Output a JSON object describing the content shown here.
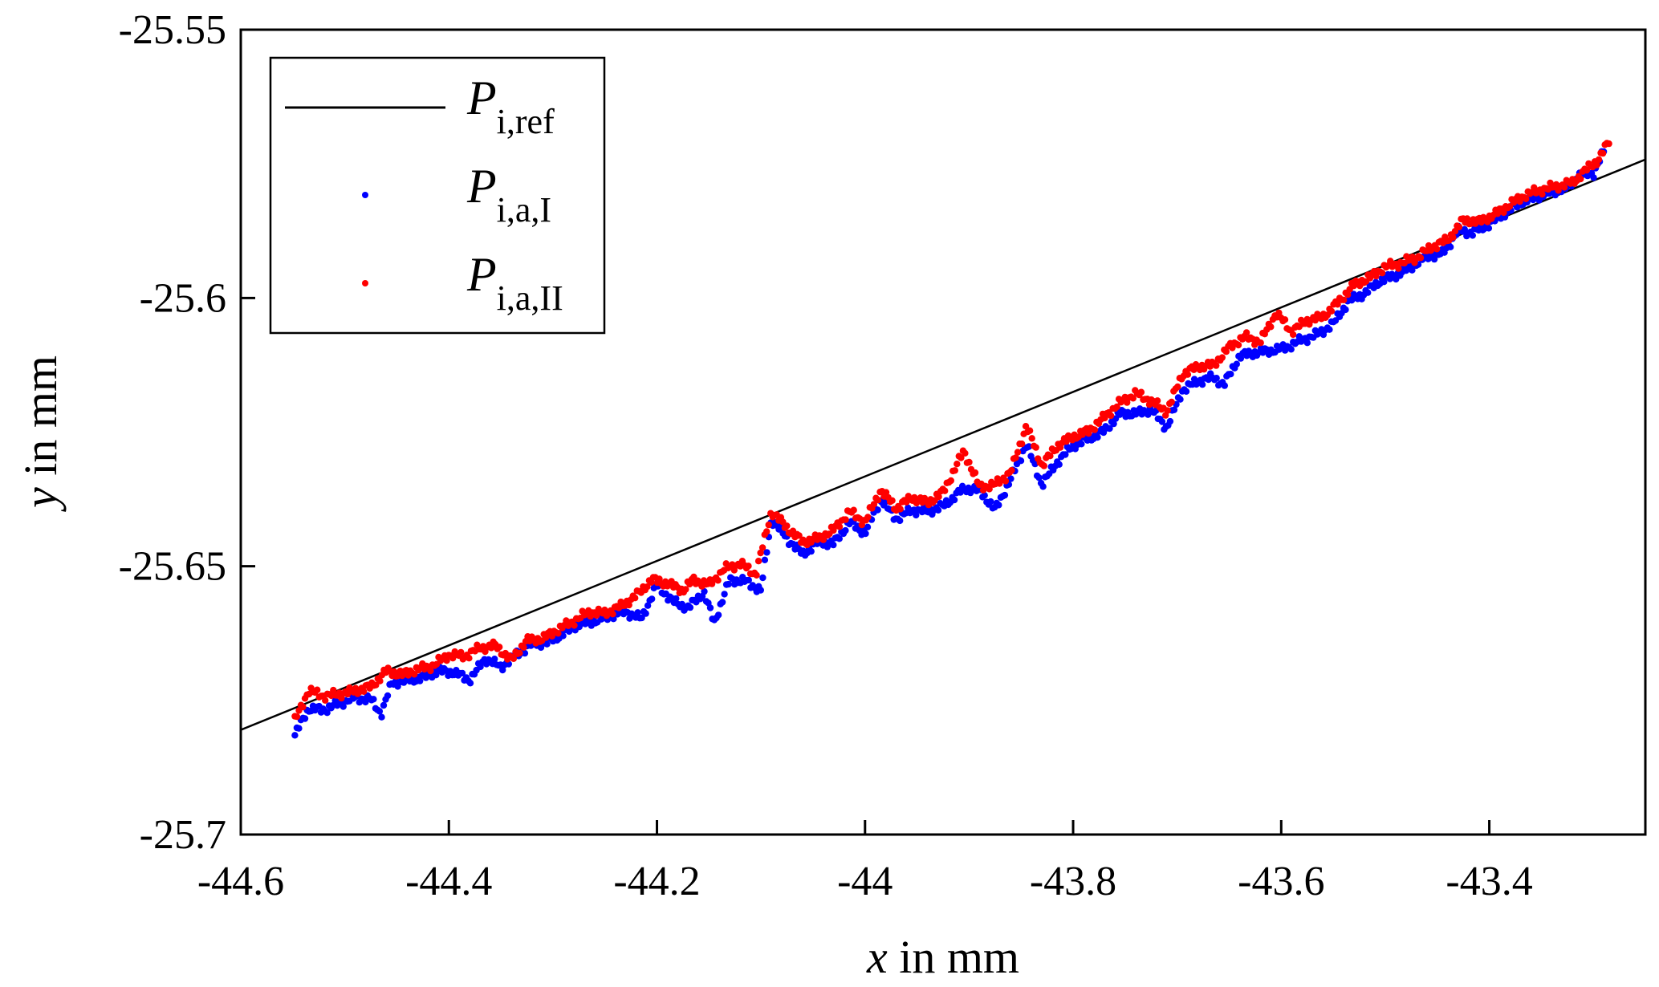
{
  "chart_data": {
    "type": "scatter",
    "title": "",
    "xlabel_var": "x",
    "xlabel_rest": " in mm",
    "ylabel_var": "y",
    "ylabel_rest": " in mm",
    "xlim": [
      -44.6,
      -43.25
    ],
    "ylim": [
      -25.7,
      -25.55
    ],
    "xticks": [
      -44.6,
      -44.4,
      -44.2,
      -44,
      -43.8,
      -43.6,
      -43.4
    ],
    "xtick_labels": [
      "-44.6",
      "-44.4",
      "-44.2",
      "-44",
      "-43.8",
      "-43.6",
      "-43.4"
    ],
    "yticks": [
      -25.55,
      -25.6,
      -25.65,
      -25.7
    ],
    "ytick_labels": [
      "-25.55",
      "-25.6",
      "-25.65",
      "-25.7"
    ],
    "legend_position": "top-left",
    "series": [
      {
        "name": "P_i,ref",
        "label_main": "P",
        "label_sub": "i,ref",
        "kind": "line",
        "color": "#000000",
        "x": [
          -44.6,
          -43.25
        ],
        "y": [
          -25.6805,
          -25.5742
        ]
      },
      {
        "name": "P_i,a,I",
        "label_main": "P",
        "label_sub": "i,a,I",
        "kind": "scatter",
        "color": "#0000ff",
        "x_start": -44.548,
        "x_end": -43.29,
        "points": [
          [
            -44.548,
            -25.6815
          ],
          [
            -44.535,
            -25.6765
          ],
          [
            -44.52,
            -25.6768
          ],
          [
            -44.505,
            -25.6755
          ],
          [
            -44.49,
            -25.6745
          ],
          [
            -44.475,
            -25.6748
          ],
          [
            -44.465,
            -25.6775
          ],
          [
            -44.455,
            -25.6718
          ],
          [
            -44.44,
            -25.6712
          ],
          [
            -44.425,
            -25.6708
          ],
          [
            -44.41,
            -25.6695
          ],
          [
            -44.395,
            -25.6698
          ],
          [
            -44.38,
            -25.6712
          ],
          [
            -44.365,
            -25.6672
          ],
          [
            -44.35,
            -25.6688
          ],
          [
            -44.335,
            -25.6665
          ],
          [
            -44.32,
            -25.6645
          ],
          [
            -44.305,
            -25.6642
          ],
          [
            -44.29,
            -25.6625
          ],
          [
            -44.275,
            -25.6608
          ],
          [
            -44.26,
            -25.6602
          ],
          [
            -44.245,
            -25.6592
          ],
          [
            -44.23,
            -25.6585
          ],
          [
            -44.215,
            -25.6598
          ],
          [
            -44.2,
            -25.6535
          ],
          [
            -44.185,
            -25.6565
          ],
          [
            -44.17,
            -25.6578
          ],
          [
            -44.155,
            -25.6548
          ],
          [
            -44.145,
            -25.6605
          ],
          [
            -44.13,
            -25.6525
          ],
          [
            -44.115,
            -25.6528
          ],
          [
            -44.1,
            -25.6545
          ],
          [
            -44.09,
            -25.6412
          ],
          [
            -44.075,
            -25.6448
          ],
          [
            -44.06,
            -25.6478
          ],
          [
            -44.045,
            -25.6455
          ],
          [
            -44.03,
            -25.6458
          ],
          [
            -44.015,
            -25.6418
          ],
          [
            -44.0,
            -25.6438
          ],
          [
            -43.985,
            -25.6375
          ],
          [
            -43.97,
            -25.6412
          ],
          [
            -43.955,
            -25.6395
          ],
          [
            -43.94,
            -25.6398
          ],
          [
            -43.925,
            -25.6388
          ],
          [
            -43.905,
            -25.6355
          ],
          [
            -43.89,
            -25.6358
          ],
          [
            -43.875,
            -25.6395
          ],
          [
            -43.86,
            -25.6338
          ],
          [
            -43.845,
            -25.6272
          ],
          [
            -43.83,
            -25.6348
          ],
          [
            -43.815,
            -25.6305
          ],
          [
            -43.8,
            -25.6275
          ],
          [
            -43.785,
            -25.6262
          ],
          [
            -43.77,
            -25.6248
          ],
          [
            -43.755,
            -25.6215
          ],
          [
            -43.74,
            -25.6215
          ],
          [
            -43.725,
            -25.6208
          ],
          [
            -43.71,
            -25.6242
          ],
          [
            -43.695,
            -25.6172
          ],
          [
            -43.68,
            -25.6155
          ],
          [
            -43.665,
            -25.6148
          ],
          [
            -43.655,
            -25.6162
          ],
          [
            -43.64,
            -25.6108
          ],
          [
            -43.625,
            -25.6102
          ],
          [
            -43.61,
            -25.6098
          ],
          [
            -43.595,
            -25.6092
          ],
          [
            -43.58,
            -25.6078
          ],
          [
            -43.565,
            -25.6068
          ],
          [
            -43.55,
            -25.6048
          ],
          [
            -43.535,
            -25.6005
          ],
          [
            -43.52,
            -25.5992
          ],
          [
            -43.505,
            -25.5968
          ],
          [
            -43.49,
            -25.5958
          ],
          [
            -43.475,
            -25.5942
          ],
          [
            -43.46,
            -25.5922
          ],
          [
            -43.445,
            -25.5918
          ],
          [
            -43.43,
            -25.5875
          ],
          [
            -43.415,
            -25.5878
          ],
          [
            -43.4,
            -25.5862
          ],
          [
            -43.385,
            -25.5842
          ],
          [
            -43.37,
            -25.5822
          ],
          [
            -43.355,
            -25.5812
          ],
          [
            -43.34,
            -25.5802
          ],
          [
            -43.325,
            -25.5795
          ],
          [
            -43.315,
            -25.5772
          ],
          [
            -43.3,
            -25.5768
          ],
          [
            -43.29,
            -25.5728
          ]
        ]
      },
      {
        "name": "P_i,a,II",
        "label_main": "P",
        "label_sub": "i,a,II",
        "kind": "scatter",
        "color": "#ff0000",
        "x_start": -44.548,
        "x_end": -43.285,
        "points": [
          [
            -44.548,
            -25.6788
          ],
          [
            -44.535,
            -25.6732
          ],
          [
            -44.52,
            -25.6742
          ],
          [
            -44.505,
            -25.6738
          ],
          [
            -44.49,
            -25.6732
          ],
          [
            -44.475,
            -25.6725
          ],
          [
            -44.46,
            -25.6695
          ],
          [
            -44.445,
            -25.6702
          ],
          [
            -44.43,
            -25.6692
          ],
          [
            -44.415,
            -25.6685
          ],
          [
            -44.4,
            -25.6665
          ],
          [
            -44.385,
            -25.6668
          ],
          [
            -44.37,
            -25.6652
          ],
          [
            -44.355,
            -25.6648
          ],
          [
            -44.34,
            -25.6675
          ],
          [
            -44.325,
            -25.6638
          ],
          [
            -44.31,
            -25.6635
          ],
          [
            -44.295,
            -25.6618
          ],
          [
            -44.28,
            -25.6602
          ],
          [
            -44.265,
            -25.6585
          ],
          [
            -44.25,
            -25.6588
          ],
          [
            -44.235,
            -25.6575
          ],
          [
            -44.22,
            -25.6555
          ],
          [
            -44.205,
            -25.6525
          ],
          [
            -44.19,
            -25.6532
          ],
          [
            -44.175,
            -25.6545
          ],
          [
            -44.165,
            -25.6525
          ],
          [
            -44.15,
            -25.6535
          ],
          [
            -44.135,
            -25.6505
          ],
          [
            -44.12,
            -25.6495
          ],
          [
            -44.105,
            -25.6515
          ],
          [
            -44.09,
            -25.6398
          ],
          [
            -44.075,
            -25.6428
          ],
          [
            -44.06,
            -25.6455
          ],
          [
            -44.045,
            -25.6448
          ],
          [
            -44.03,
            -25.6432
          ],
          [
            -44.015,
            -25.6398
          ],
          [
            -44.0,
            -25.6418
          ],
          [
            -43.985,
            -25.6358
          ],
          [
            -43.97,
            -25.6392
          ],
          [
            -43.955,
            -25.6372
          ],
          [
            -43.94,
            -25.6382
          ],
          [
            -43.925,
            -25.6362
          ],
          [
            -43.905,
            -25.6285
          ],
          [
            -43.89,
            -25.6352
          ],
          [
            -43.875,
            -25.6348
          ],
          [
            -43.86,
            -25.6325
          ],
          [
            -43.845,
            -25.6238
          ],
          [
            -43.83,
            -25.6312
          ],
          [
            -43.815,
            -25.6275
          ],
          [
            -43.8,
            -25.6258
          ],
          [
            -43.785,
            -25.6248
          ],
          [
            -43.77,
            -25.6222
          ],
          [
            -43.755,
            -25.6195
          ],
          [
            -43.74,
            -25.6178
          ],
          [
            -43.725,
            -25.6192
          ],
          [
            -43.71,
            -25.6212
          ],
          [
            -43.695,
            -25.6142
          ],
          [
            -43.68,
            -25.6128
          ],
          [
            -43.665,
            -25.6125
          ],
          [
            -43.65,
            -25.6092
          ],
          [
            -43.635,
            -25.6072
          ],
          [
            -43.62,
            -25.6082
          ],
          [
            -43.605,
            -25.6028
          ],
          [
            -43.59,
            -25.6062
          ],
          [
            -43.575,
            -25.6042
          ],
          [
            -43.56,
            -25.6035
          ],
          [
            -43.545,
            -25.6008
          ],
          [
            -43.53,
            -25.5975
          ],
          [
            -43.515,
            -25.5962
          ],
          [
            -43.5,
            -25.5942
          ],
          [
            -43.485,
            -25.5935
          ],
          [
            -43.47,
            -25.5925
          ],
          [
            -43.455,
            -25.5905
          ],
          [
            -43.44,
            -25.5892
          ],
          [
            -43.425,
            -25.5855
          ],
          [
            -43.41,
            -25.5858
          ],
          [
            -43.395,
            -25.5845
          ],
          [
            -43.38,
            -25.5825
          ],
          [
            -43.365,
            -25.5808
          ],
          [
            -43.35,
            -25.5798
          ],
          [
            -43.335,
            -25.5792
          ],
          [
            -43.32,
            -25.5785
          ],
          [
            -43.305,
            -25.5758
          ],
          [
            -43.295,
            -25.5742
          ],
          [
            -43.285,
            -25.5708
          ]
        ]
      }
    ]
  }
}
